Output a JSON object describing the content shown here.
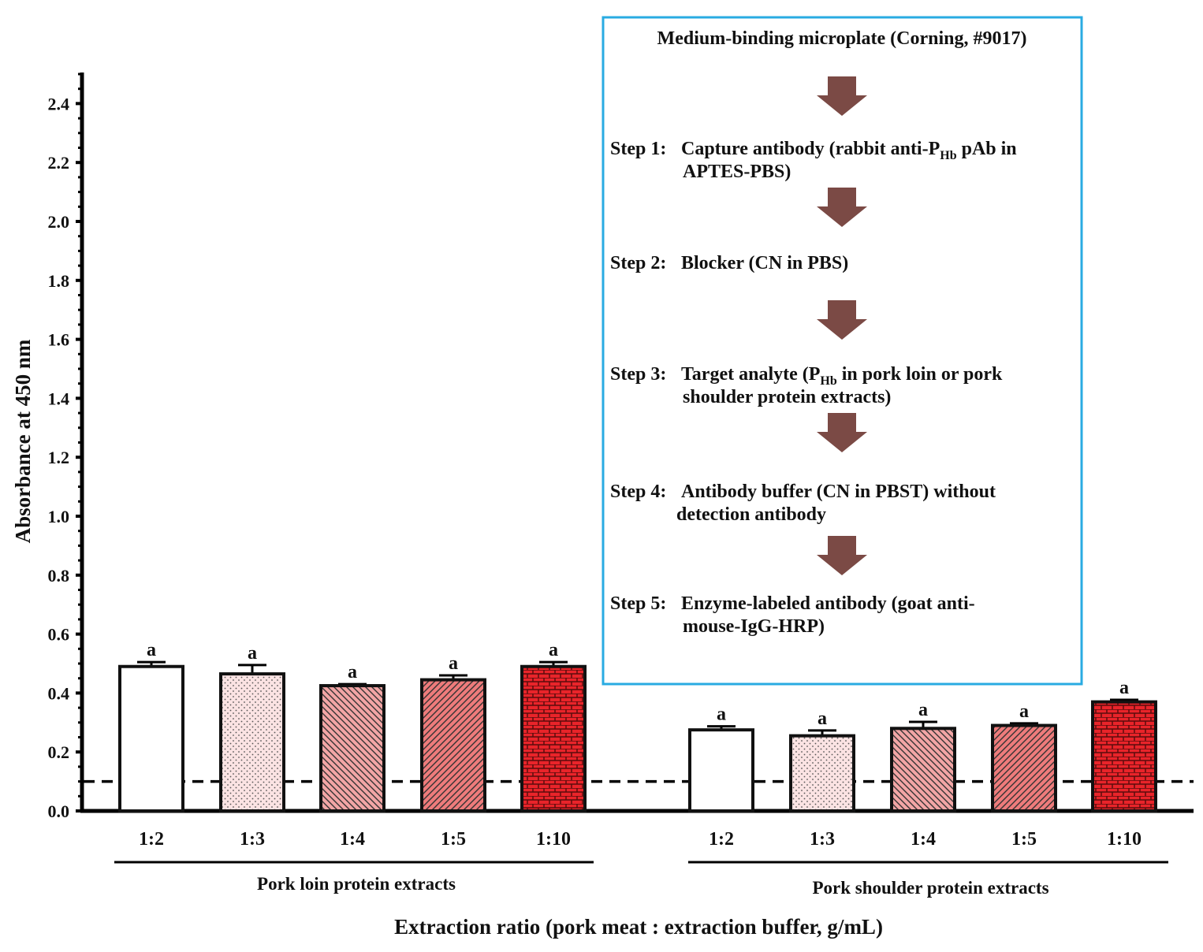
{
  "colors": {
    "border_box": "#29abe2",
    "arrow": "#7b4a45",
    "bar_outline": "#111111",
    "fill_1_3": "#fbe3e3",
    "fill_1_4": "#f2a5a5",
    "fill_1_5": "#ee7b7b",
    "fill_1_10": "#e9242a"
  },
  "chart_data": {
    "type": "bar",
    "ylabel": "Absorbance at 450 nm",
    "xlabel": "Extraction ratio (pork meat : extraction buffer, g/mL)",
    "ylim": [
      0,
      2.5
    ],
    "yticks": [
      "0.0",
      "0.2",
      "0.4",
      "0.6",
      "0.8",
      "1.0",
      "1.2",
      "1.4",
      "1.6",
      "1.8",
      "2.0",
      "2.2",
      "2.4"
    ],
    "cutoff_line": 0.1,
    "groups": [
      {
        "label": "Pork loin protein extracts",
        "categories": [
          "1:2",
          "1:3",
          "1:4",
          "1:5",
          "1:10"
        ],
        "values": [
          0.49,
          0.465,
          0.425,
          0.445,
          0.49
        ],
        "errors": [
          0.015,
          0.03,
          0.005,
          0.015,
          0.015
        ],
        "letters": [
          "a",
          "a",
          "a",
          "a",
          "a"
        ]
      },
      {
        "label": "Pork shoulder protein extracts",
        "categories": [
          "1:2",
          "1:3",
          "1:4",
          "1:5",
          "1:10"
        ],
        "values": [
          0.275,
          0.255,
          0.28,
          0.29,
          0.37
        ],
        "errors": [
          0.012,
          0.018,
          0.022,
          0.007,
          0.007
        ],
        "letters": [
          "a",
          "a",
          "a",
          "a",
          "a"
        ]
      }
    ]
  },
  "protocol": {
    "title": "Medium-binding microplate (Corning, #9017)",
    "steps": [
      {
        "prefix": "Step 1:",
        "line1a": "Capture antibody (rabbit anti-P",
        "sub": "Hb",
        "line1b": " pAb in",
        "line2": "APTES-PBS)"
      },
      {
        "prefix": "Step 2:",
        "line1a": "Blocker (CN in PBS)",
        "sub": "",
        "line1b": "",
        "line2": ""
      },
      {
        "prefix": "Step 3:",
        "line1a": "Target analyte (P",
        "sub": "Hb",
        "line1b": " in pork loin or pork",
        "line2": "shoulder protein extracts)"
      },
      {
        "prefix": "Step 4:",
        "line1a": "Antibody buffer (CN in PBST) without",
        "sub": "",
        "line1b": "",
        "line2": "detection antibody"
      },
      {
        "prefix": "Step 5:",
        "line1a": "Enzyme-labeled antibody (goat anti-",
        "sub": "",
        "line1b": "",
        "line2": "mouse-IgG-HRP)"
      }
    ]
  }
}
